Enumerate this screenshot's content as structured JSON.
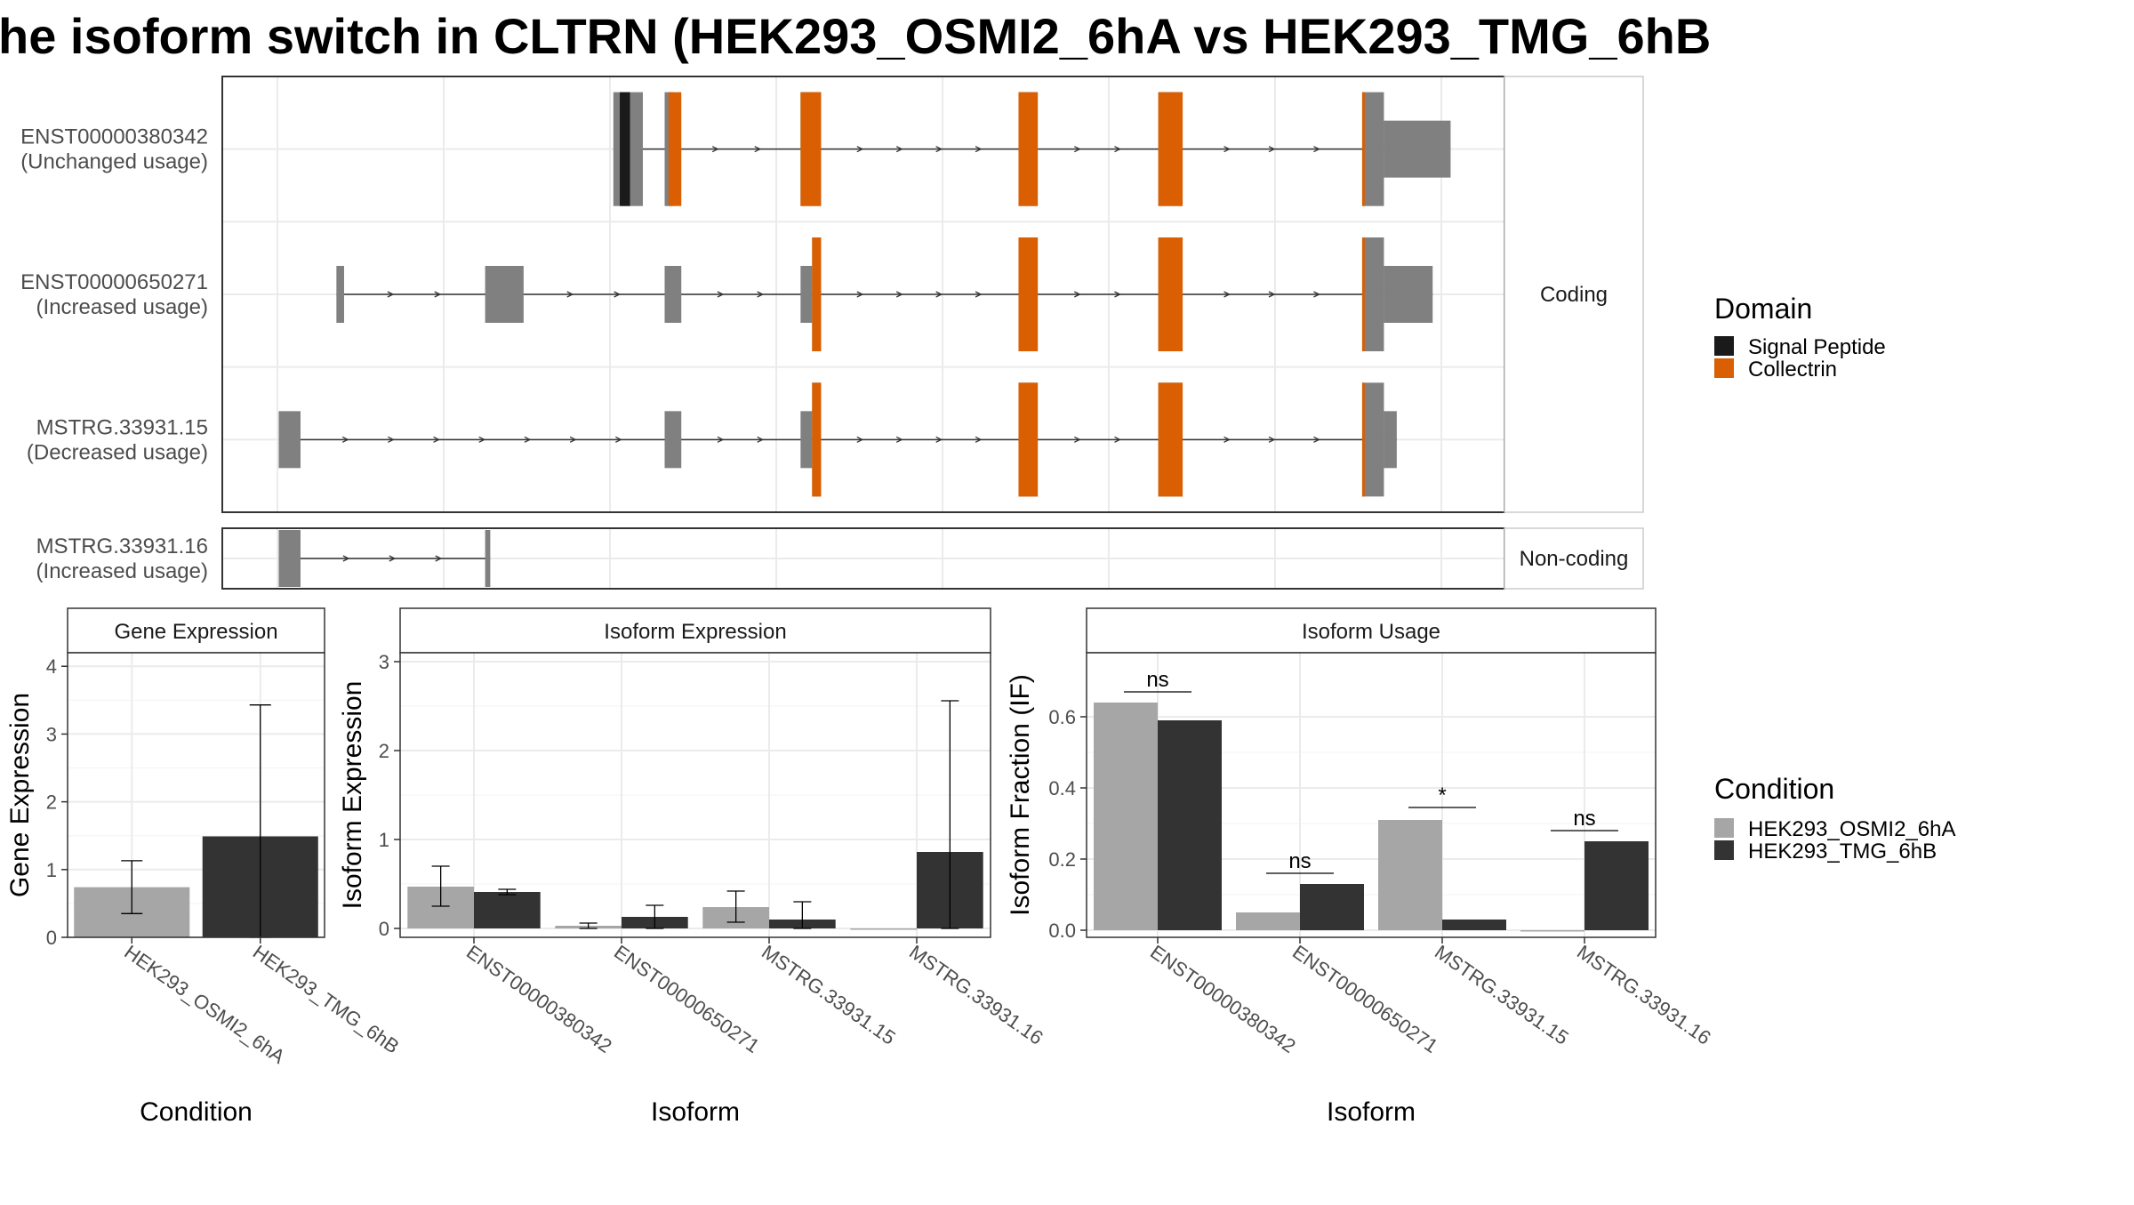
{
  "title": "he isoform switch in CLTRN (HEK293_OSMI2_6hA vs HEK293_TMG_6hB",
  "colors": {
    "condition_a": "#a6a6a6",
    "condition_b": "#333333",
    "exon": "#808080",
    "signal_peptide": "#1a1a1a",
    "collectrin": "#d95f02",
    "panel_border": "#333333",
    "grid": "#ebebeb"
  },
  "structure": {
    "coding_label": "Coding",
    "noncoding_label": "Non-coding",
    "isoforms": [
      {
        "id": "ENST00000380342",
        "usage": "(Unchanged usage)",
        "category": "coding",
        "exons": [
          [
            0.305,
            0.328,
            "tall"
          ],
          [
            0.345,
            0.352,
            "tall"
          ],
          [
            0.451,
            0.467,
            "tall"
          ],
          [
            0.621,
            0.636,
            "tall"
          ],
          [
            0.73,
            0.749,
            "tall"
          ],
          [
            0.889,
            0.906,
            "tall"
          ],
          [
            0.906,
            0.958,
            "utr"
          ]
        ],
        "domains": [
          [
            0.31,
            0.318,
            "signal_peptide"
          ],
          [
            0.348,
            0.358,
            "collectrin"
          ],
          [
            0.451,
            0.467,
            "collectrin"
          ],
          [
            0.621,
            0.636,
            "collectrin"
          ],
          [
            0.73,
            0.749,
            "collectrin"
          ],
          [
            0.889,
            0.891,
            "collectrin"
          ]
        ]
      },
      {
        "id": "ENST00000650271",
        "usage": "(Increased usage)",
        "category": "coding",
        "exons": [
          [
            0.089,
            0.095,
            "utr"
          ],
          [
            0.205,
            0.235,
            "utr"
          ],
          [
            0.345,
            0.358,
            "utr"
          ],
          [
            0.451,
            0.46,
            "utr"
          ],
          [
            0.46,
            0.467,
            "tall"
          ],
          [
            0.621,
            0.636,
            "tall"
          ],
          [
            0.73,
            0.749,
            "tall"
          ],
          [
            0.889,
            0.906,
            "tall"
          ],
          [
            0.906,
            0.944,
            "utr"
          ]
        ],
        "domains": [
          [
            0.46,
            0.467,
            "collectrin"
          ],
          [
            0.621,
            0.636,
            "collectrin"
          ],
          [
            0.73,
            0.749,
            "collectrin"
          ],
          [
            0.889,
            0.891,
            "collectrin"
          ]
        ]
      },
      {
        "id": "MSTRG.33931.15",
        "usage": "(Decreased usage)",
        "category": "coding",
        "exons": [
          [
            0.044,
            0.061,
            "utr"
          ],
          [
            0.345,
            0.358,
            "utr"
          ],
          [
            0.451,
            0.46,
            "utr"
          ],
          [
            0.46,
            0.467,
            "tall"
          ],
          [
            0.621,
            0.636,
            "tall"
          ],
          [
            0.73,
            0.749,
            "tall"
          ],
          [
            0.889,
            0.906,
            "tall"
          ],
          [
            0.906,
            0.916,
            "utr"
          ]
        ],
        "domains": [
          [
            0.46,
            0.467,
            "collectrin"
          ],
          [
            0.621,
            0.636,
            "collectrin"
          ],
          [
            0.73,
            0.749,
            "collectrin"
          ],
          [
            0.889,
            0.891,
            "collectrin"
          ]
        ]
      },
      {
        "id": "MSTRG.33931.16",
        "usage": "(Increased usage)",
        "category": "noncoding",
        "exons": [
          [
            0.044,
            0.061,
            "utr"
          ],
          [
            0.205,
            0.209,
            "utr"
          ]
        ],
        "domains": []
      }
    ],
    "domain_legend": {
      "title": "Domain",
      "items": [
        {
          "label": "Signal Peptide",
          "color": "#1a1a1a"
        },
        {
          "label": "Collectrin",
          "color": "#d95f02"
        }
      ]
    }
  },
  "chart_data": [
    {
      "type": "bar",
      "title": "Gene Expression",
      "xlabel": "Condition",
      "ylabel": "Gene Expression",
      "ylim": [
        0,
        4.2
      ],
      "yticks": [
        0,
        1,
        2,
        3,
        4
      ],
      "categories": [
        "HEK293_OSMI2_6hA",
        "HEK293_TMG_6hB"
      ],
      "series": [
        {
          "values": [
            0.74,
            1.49
          ],
          "err_low": [
            0.35,
            0.0
          ],
          "err_high": [
            1.13,
            3.43
          ]
        }
      ]
    },
    {
      "type": "bar",
      "title": "Isoform Expression",
      "xlabel": "Isoform",
      "ylabel": "Isoform Expression",
      "ylim": [
        -0.1,
        3.1
      ],
      "yticks": [
        0,
        1,
        2,
        3
      ],
      "categories": [
        "ENST00000380342",
        "ENST00000650271",
        "MSTRG.33931.15",
        "MSTRG.33931.16"
      ],
      "series": [
        {
          "name": "HEK293_OSMI2_6hA",
          "values": [
            0.47,
            0.03,
            0.24,
            0.0
          ],
          "err_low": [
            0.25,
            0.0,
            0.07,
            0.0
          ],
          "err_high": [
            0.7,
            0.06,
            0.42,
            0.0
          ]
        },
        {
          "name": "HEK293_TMG_6hB",
          "values": [
            0.41,
            0.13,
            0.1,
            0.86
          ],
          "err_low": [
            0.38,
            0.0,
            0.0,
            0.0
          ],
          "err_high": [
            0.44,
            0.26,
            0.3,
            2.56
          ]
        }
      ]
    },
    {
      "type": "bar",
      "title": "Isoform Usage",
      "xlabel": "Isoform",
      "ylabel": "Isoform Fraction (IF)",
      "ylim": [
        -0.02,
        0.78
      ],
      "yticks": [
        "0.0",
        "0.2",
        "0.4",
        "0.6"
      ],
      "categories": [
        "ENST00000380342",
        "ENST00000650271",
        "MSTRG.33931.15",
        "MSTRG.33931.16"
      ],
      "series": [
        {
          "name": "HEK293_OSMI2_6hA",
          "values": [
            0.64,
            0.05,
            0.31,
            0.0
          ]
        },
        {
          "name": "HEK293_TMG_6hB",
          "values": [
            0.59,
            0.13,
            0.03,
            0.25
          ]
        }
      ],
      "significance": [
        {
          "label": "ns",
          "y": 0.67
        },
        {
          "label": "ns",
          "y": 0.16
        },
        {
          "label": "*",
          "y": 0.345
        },
        {
          "label": "ns",
          "y": 0.28
        }
      ],
      "legend": {
        "title": "Condition",
        "items": [
          {
            "label": "HEK293_OSMI2_6hA",
            "color": "#a6a6a6"
          },
          {
            "label": "HEK293_TMG_6hB",
            "color": "#333333"
          }
        ]
      }
    }
  ]
}
